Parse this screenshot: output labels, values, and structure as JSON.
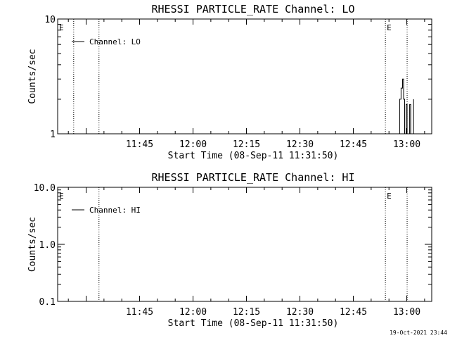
{
  "footer": {
    "timestamp": "19-Oct-2021 23:44"
  },
  "chart_data": [
    {
      "type": "line",
      "title": "RHESSI PARTICLE_RATE Channel: LO",
      "xlabel": "Start Time (08-Sep-11 11:31:50)",
      "ylabel": "Counts/sec",
      "yscale": "log",
      "ylim": [
        1,
        10
      ],
      "yticks": [
        1,
        10
      ],
      "ytick_labels": [
        "1",
        "10"
      ],
      "xlim_minutes": [
        -38,
        67
      ],
      "xticks_minutes": [
        -15,
        0,
        15,
        30,
        45,
        60
      ],
      "xtick_labels": [
        "11:45",
        "12:00",
        "12:15",
        "12:30",
        "12:45",
        "13:00"
      ],
      "event_lines_minutes": [
        -33.5,
        -26.4,
        54.0,
        60.1
      ],
      "event_marks": [
        {
          "x": -38,
          "label": "E"
        },
        {
          "x": 54.0,
          "label": "E"
        }
      ],
      "legend": {
        "label": "Channel: LO",
        "position": "top-left"
      },
      "series": [
        {
          "name": "Channel: LO",
          "x": [
            58.0,
            58.4,
            58.8,
            59.1,
            59.4,
            59.8,
            60.1,
            60.4,
            60.8,
            61.1,
            61.5,
            61.9
          ],
          "y": [
            2.0,
            2.5,
            3.0,
            2.0,
            1.0,
            1.8,
            1.0,
            1.0,
            1.8,
            1.0,
            1.0,
            2.0
          ]
        }
      ]
    },
    {
      "type": "line",
      "title": "RHESSI PARTICLE_RATE Channel: HI",
      "xlabel": "Start Time (08-Sep-11 11:31:50)",
      "ylabel": "Counts/sec",
      "yscale": "log",
      "ylim": [
        0.1,
        10
      ],
      "yticks": [
        0.1,
        1,
        10
      ],
      "ytick_labels": [
        "0.1",
        "1.0",
        "10.0"
      ],
      "xlim_minutes": [
        -38,
        67
      ],
      "xticks_minutes": [
        -15,
        0,
        15,
        30,
        45,
        60
      ],
      "xtick_labels": [
        "11:45",
        "12:00",
        "12:15",
        "12:30",
        "12:45",
        "13:00"
      ],
      "event_lines_minutes": [
        -26.4,
        54.0,
        60.1
      ],
      "event_marks": [
        {
          "x": -38,
          "label": "E"
        },
        {
          "x": 54.0,
          "label": "E"
        }
      ],
      "legend": {
        "label": "Channel: HI",
        "position": "top-left"
      },
      "series": [
        {
          "name": "Channel: HI",
          "x": [],
          "y": []
        }
      ]
    }
  ]
}
